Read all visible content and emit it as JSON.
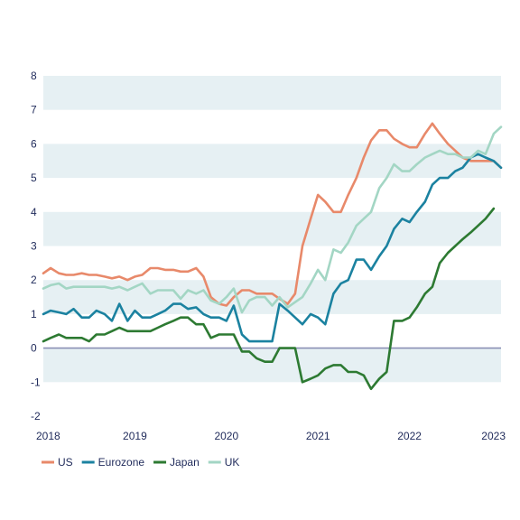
{
  "chart_data": {
    "type": "line",
    "title": "",
    "xlabel": "",
    "ylabel": "",
    "ylim": [
      -2,
      8
    ],
    "xlim": [
      2018,
      2023
    ],
    "y_ticks": [
      "8",
      "7",
      "6",
      "5",
      "4",
      "3",
      "2",
      "1",
      "0",
      "-1",
      "-2"
    ],
    "x_ticks": [
      "2018",
      "2019",
      "2020",
      "2021",
      "2022",
      "2023"
    ],
    "grid": "alternating horizontal bands",
    "legend_position": "bottom-left",
    "series": [
      {
        "name": "US",
        "color": "#e8896a",
        "points": [
          [
            2018.0,
            2.2
          ],
          [
            2018.08,
            2.35
          ],
          [
            2018.17,
            2.2
          ],
          [
            2018.25,
            2.15
          ],
          [
            2018.33,
            2.15
          ],
          [
            2018.42,
            2.2
          ],
          [
            2018.5,
            2.15
          ],
          [
            2018.58,
            2.15
          ],
          [
            2018.67,
            2.1
          ],
          [
            2018.75,
            2.05
          ],
          [
            2018.83,
            2.1
          ],
          [
            2018.92,
            2.0
          ],
          [
            2019.0,
            2.1
          ],
          [
            2019.08,
            2.15
          ],
          [
            2019.17,
            2.35
          ],
          [
            2019.25,
            2.35
          ],
          [
            2019.33,
            2.3
          ],
          [
            2019.42,
            2.3
          ],
          [
            2019.5,
            2.25
          ],
          [
            2019.58,
            2.25
          ],
          [
            2019.67,
            2.35
          ],
          [
            2019.75,
            2.1
          ],
          [
            2019.83,
            1.5
          ],
          [
            2019.92,
            1.3
          ],
          [
            2020.0,
            1.25
          ],
          [
            2020.08,
            1.5
          ],
          [
            2020.17,
            1.7
          ],
          [
            2020.25,
            1.7
          ],
          [
            2020.33,
            1.6
          ],
          [
            2020.42,
            1.6
          ],
          [
            2020.5,
            1.6
          ],
          [
            2020.58,
            1.45
          ],
          [
            2020.67,
            1.3
          ],
          [
            2020.75,
            1.6
          ],
          [
            2020.83,
            3.0
          ],
          [
            2020.92,
            3.8
          ],
          [
            2021.0,
            4.5
          ],
          [
            2021.08,
            4.3
          ],
          [
            2021.17,
            4.0
          ],
          [
            2021.25,
            4.0
          ],
          [
            2021.33,
            4.5
          ],
          [
            2021.42,
            5.0
          ],
          [
            2021.5,
            5.6
          ],
          [
            2021.58,
            6.1
          ],
          [
            2021.67,
            6.4
          ],
          [
            2021.75,
            6.4
          ],
          [
            2021.83,
            6.15
          ],
          [
            2021.92,
            6.0
          ],
          [
            2022.0,
            5.9
          ],
          [
            2022.08,
            5.9
          ],
          [
            2022.17,
            6.3
          ],
          [
            2022.25,
            6.6
          ],
          [
            2022.33,
            6.3
          ],
          [
            2022.42,
            6.0
          ],
          [
            2022.5,
            5.8
          ],
          [
            2022.58,
            5.6
          ],
          [
            2022.67,
            5.5
          ],
          [
            2022.75,
            5.5
          ],
          [
            2022.83,
            5.5
          ],
          [
            2022.92,
            5.5
          ],
          [
            2023.0,
            5.3
          ]
        ]
      },
      {
        "name": "Eurozone",
        "color": "#1b82a0",
        "points": [
          [
            2018.0,
            1.0
          ],
          [
            2018.08,
            1.1
          ],
          [
            2018.17,
            1.05
          ],
          [
            2018.25,
            1.0
          ],
          [
            2018.33,
            1.15
          ],
          [
            2018.42,
            0.9
          ],
          [
            2018.5,
            0.9
          ],
          [
            2018.58,
            1.1
          ],
          [
            2018.67,
            1.0
          ],
          [
            2018.75,
            0.8
          ],
          [
            2018.83,
            1.3
          ],
          [
            2018.92,
            0.8
          ],
          [
            2019.0,
            1.1
          ],
          [
            2019.08,
            0.9
          ],
          [
            2019.17,
            0.9
          ],
          [
            2019.25,
            1.0
          ],
          [
            2019.33,
            1.1
          ],
          [
            2019.42,
            1.3
          ],
          [
            2019.5,
            1.3
          ],
          [
            2019.58,
            1.15
          ],
          [
            2019.67,
            1.2
          ],
          [
            2019.75,
            1.0
          ],
          [
            2019.83,
            0.9
          ],
          [
            2019.92,
            0.9
          ],
          [
            2020.0,
            0.8
          ],
          [
            2020.08,
            1.25
          ],
          [
            2020.17,
            0.4
          ],
          [
            2020.25,
            0.2
          ],
          [
            2020.33,
            0.2
          ],
          [
            2020.42,
            0.2
          ],
          [
            2020.5,
            0.2
          ],
          [
            2020.58,
            1.3
          ],
          [
            2020.67,
            1.1
          ],
          [
            2020.75,
            0.9
          ],
          [
            2020.83,
            0.7
          ],
          [
            2020.92,
            1.0
          ],
          [
            2021.0,
            0.9
          ],
          [
            2021.08,
            0.7
          ],
          [
            2021.17,
            1.6
          ],
          [
            2021.25,
            1.9
          ],
          [
            2021.33,
            2.0
          ],
          [
            2021.42,
            2.6
          ],
          [
            2021.5,
            2.6
          ],
          [
            2021.58,
            2.3
          ],
          [
            2021.67,
            2.7
          ],
          [
            2021.75,
            3.0
          ],
          [
            2021.83,
            3.5
          ],
          [
            2021.92,
            3.8
          ],
          [
            2022.0,
            3.7
          ],
          [
            2022.08,
            4.0
          ],
          [
            2022.17,
            4.3
          ],
          [
            2022.25,
            4.8
          ],
          [
            2022.33,
            5.0
          ],
          [
            2022.42,
            5.0
          ],
          [
            2022.5,
            5.2
          ],
          [
            2022.58,
            5.3
          ],
          [
            2022.67,
            5.6
          ],
          [
            2022.75,
            5.7
          ],
          [
            2022.83,
            5.6
          ],
          [
            2022.92,
            5.5
          ],
          [
            2023.0,
            5.3
          ]
        ]
      },
      {
        "name": "Japan",
        "color": "#2d7a32",
        "points": [
          [
            2018.0,
            0.2
          ],
          [
            2018.08,
            0.3
          ],
          [
            2018.17,
            0.4
          ],
          [
            2018.25,
            0.3
          ],
          [
            2018.33,
            0.3
          ],
          [
            2018.42,
            0.3
          ],
          [
            2018.5,
            0.2
          ],
          [
            2018.58,
            0.4
          ],
          [
            2018.67,
            0.4
          ],
          [
            2018.75,
            0.5
          ],
          [
            2018.83,
            0.6
          ],
          [
            2018.92,
            0.5
          ],
          [
            2019.0,
            0.5
          ],
          [
            2019.08,
            0.5
          ],
          [
            2019.17,
            0.5
          ],
          [
            2019.25,
            0.6
          ],
          [
            2019.33,
            0.7
          ],
          [
            2019.42,
            0.8
          ],
          [
            2019.5,
            0.9
          ],
          [
            2019.58,
            0.9
          ],
          [
            2019.67,
            0.7
          ],
          [
            2019.75,
            0.7
          ],
          [
            2019.83,
            0.3
          ],
          [
            2019.92,
            0.4
          ],
          [
            2020.0,
            0.4
          ],
          [
            2020.08,
            0.4
          ],
          [
            2020.17,
            -0.1
          ],
          [
            2020.25,
            -0.1
          ],
          [
            2020.33,
            -0.3
          ],
          [
            2020.42,
            -0.4
          ],
          [
            2020.5,
            -0.4
          ],
          [
            2020.58,
            0.0
          ],
          [
            2020.67,
            0.0
          ],
          [
            2020.75,
            0.0
          ],
          [
            2020.83,
            -1.0
          ],
          [
            2020.92,
            -0.9
          ],
          [
            2021.0,
            -0.8
          ],
          [
            2021.08,
            -0.6
          ],
          [
            2021.17,
            -0.5
          ],
          [
            2021.25,
            -0.5
          ],
          [
            2021.33,
            -0.7
          ],
          [
            2021.42,
            -0.7
          ],
          [
            2021.5,
            -0.8
          ],
          [
            2021.58,
            -1.2
          ],
          [
            2021.67,
            -0.9
          ],
          [
            2021.75,
            -0.7
          ],
          [
            2021.83,
            0.8
          ],
          [
            2021.92,
            0.8
          ],
          [
            2022.0,
            0.9
          ],
          [
            2022.08,
            1.2
          ],
          [
            2022.17,
            1.6
          ],
          [
            2022.25,
            1.8
          ],
          [
            2022.33,
            2.5
          ],
          [
            2022.42,
            2.8
          ],
          [
            2022.5,
            3.0
          ],
          [
            2022.58,
            3.2
          ],
          [
            2022.67,
            3.4
          ],
          [
            2022.75,
            3.6
          ],
          [
            2022.83,
            3.8
          ],
          [
            2022.92,
            4.1
          ]
        ]
      },
      {
        "name": "UK",
        "color": "#a3d6c4",
        "points": [
          [
            2018.0,
            1.75
          ],
          [
            2018.08,
            1.85
          ],
          [
            2018.17,
            1.9
          ],
          [
            2018.25,
            1.75
          ],
          [
            2018.33,
            1.8
          ],
          [
            2018.42,
            1.8
          ],
          [
            2018.5,
            1.8
          ],
          [
            2018.58,
            1.8
          ],
          [
            2018.67,
            1.8
          ],
          [
            2018.75,
            1.75
          ],
          [
            2018.83,
            1.8
          ],
          [
            2018.92,
            1.7
          ],
          [
            2019.0,
            1.8
          ],
          [
            2019.08,
            1.9
          ],
          [
            2019.17,
            1.6
          ],
          [
            2019.25,
            1.7
          ],
          [
            2019.33,
            1.7
          ],
          [
            2019.42,
            1.7
          ],
          [
            2019.5,
            1.45
          ],
          [
            2019.58,
            1.7
          ],
          [
            2019.67,
            1.6
          ],
          [
            2019.75,
            1.7
          ],
          [
            2019.83,
            1.4
          ],
          [
            2019.92,
            1.3
          ],
          [
            2020.0,
            1.5
          ],
          [
            2020.08,
            1.75
          ],
          [
            2020.17,
            1.05
          ],
          [
            2020.25,
            1.4
          ],
          [
            2020.33,
            1.5
          ],
          [
            2020.42,
            1.5
          ],
          [
            2020.5,
            1.25
          ],
          [
            2020.58,
            1.5
          ],
          [
            2020.67,
            1.2
          ],
          [
            2020.75,
            1.35
          ],
          [
            2020.83,
            1.5
          ],
          [
            2020.92,
            1.9
          ],
          [
            2021.0,
            2.3
          ],
          [
            2021.08,
            2.0
          ],
          [
            2021.17,
            2.9
          ],
          [
            2021.25,
            2.8
          ],
          [
            2021.33,
            3.1
          ],
          [
            2021.42,
            3.6
          ],
          [
            2021.5,
            3.8
          ],
          [
            2021.58,
            4.0
          ],
          [
            2021.67,
            4.7
          ],
          [
            2021.75,
            5.0
          ],
          [
            2021.83,
            5.4
          ],
          [
            2021.92,
            5.2
          ],
          [
            2022.0,
            5.2
          ],
          [
            2022.08,
            5.4
          ],
          [
            2022.17,
            5.6
          ],
          [
            2022.25,
            5.7
          ],
          [
            2022.33,
            5.8
          ],
          [
            2022.42,
            5.7
          ],
          [
            2022.5,
            5.7
          ],
          [
            2022.58,
            5.6
          ],
          [
            2022.67,
            5.6
          ],
          [
            2022.75,
            5.8
          ],
          [
            2022.83,
            5.7
          ],
          [
            2022.92,
            6.3
          ],
          [
            2023.0,
            6.5
          ]
        ]
      }
    ]
  }
}
